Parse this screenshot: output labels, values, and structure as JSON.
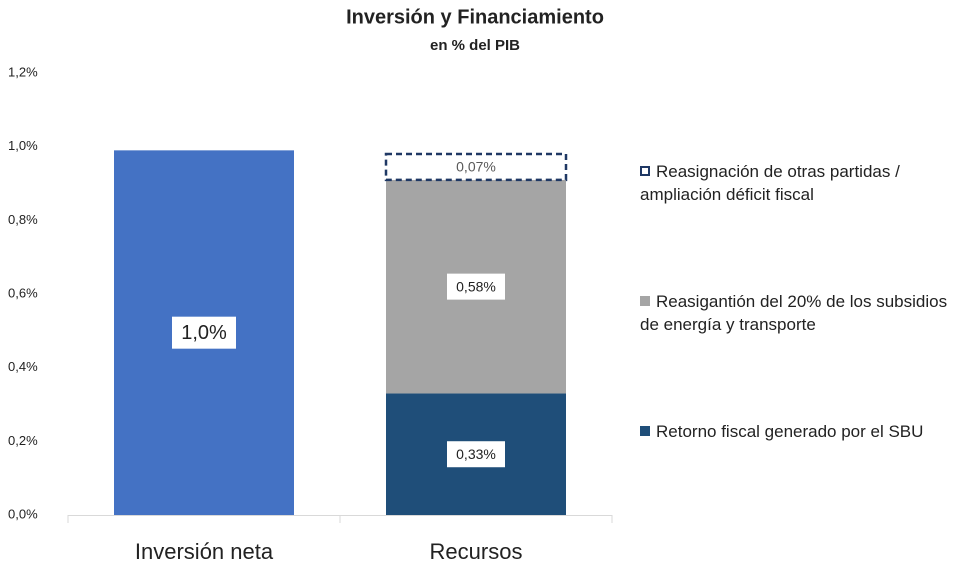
{
  "chart_data": {
    "type": "stacked_bar",
    "title": "Inversión y Financiamiento",
    "subtitle": "en % del PIB",
    "categories": [
      "Inversión neta",
      "Recursos"
    ],
    "series": [
      {
        "color": "#4472c4",
        "values": [
          0.99,
          null
        ],
        "value_labels": [
          "1,0%",
          null
        ]
      },
      {
        "name": "Retorno fiscal generado por el SBU",
        "color": "#1f4e79",
        "values": [
          null,
          0.33
        ],
        "value_labels": [
          null,
          "0,33%"
        ]
      },
      {
        "name": "Reasigantión del 20% de los subsidios de energía y transporte",
        "color": "#a5a5a5",
        "values": [
          null,
          0.58
        ],
        "value_labels": [
          null,
          "0,58%"
        ]
      },
      {
        "name": "Reasignación de otras partidas / ampliación déficit fiscal",
        "color": "#1f3864",
        "dashed": true,
        "values": [
          null,
          0.07
        ],
        "value_labels": [
          null,
          "0,07%"
        ]
      }
    ],
    "ylim": [
      0,
      1.2
    ],
    "yticks": [
      {
        "value": 0,
        "label": "0,0%"
      },
      {
        "value": 0.2,
        "label": "0,2%"
      },
      {
        "value": 0.4,
        "label": "0,4%"
      },
      {
        "value": 0.6,
        "label": "0,6%"
      },
      {
        "value": 0.8,
        "label": "0,8%"
      },
      {
        "value": 1.0,
        "label": "1,0%"
      },
      {
        "value": 1.2,
        "label": "1,2%"
      }
    ],
    "grid": false,
    "legend": "right"
  }
}
